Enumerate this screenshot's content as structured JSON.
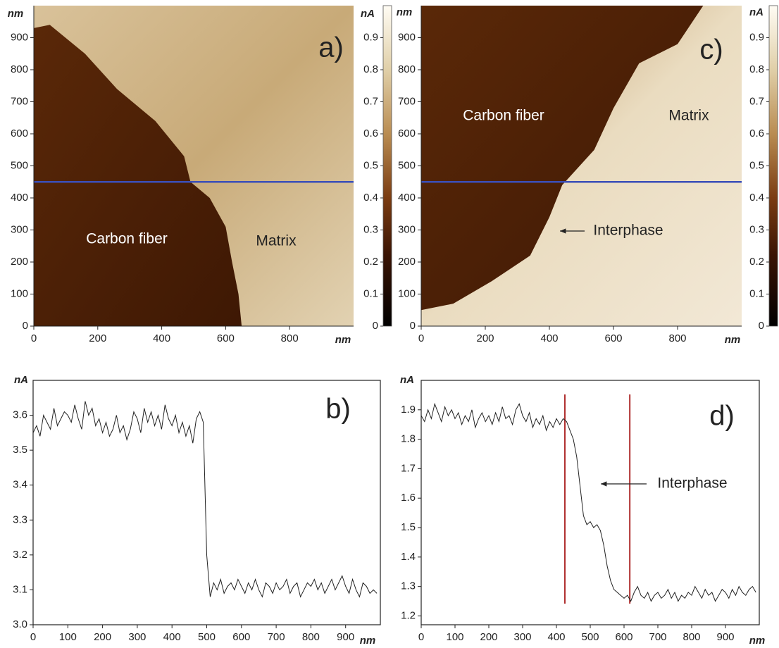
{
  "chart_data": [
    {
      "type": "image",
      "title": "a)",
      "x_label": "nm",
      "y_label": "nm",
      "xlim": [
        0,
        1000
      ],
      "ylim": [
        0,
        1000
      ],
      "xticks": [
        0,
        200,
        400,
        600,
        800
      ],
      "yticks": [
        0,
        100,
        200,
        300,
        400,
        500,
        600,
        700,
        800,
        900
      ],
      "colorbar": {
        "label": "nA",
        "lim": [
          0,
          1
        ],
        "ticks": [
          0,
          0.1,
          0.2,
          0.3,
          0.4,
          0.5,
          0.6,
          0.7,
          0.8,
          0.9
        ]
      },
      "profile_y": 450,
      "profile_color": "#3b4fb8",
      "annotations": [
        "Carbon fiber",
        "Matrix"
      ]
    },
    {
      "type": "line",
      "title": "b)",
      "x_label": "nm",
      "y_label": "nA",
      "xlim": [
        0,
        1000
      ],
      "ylim": [
        3.0,
        3.7
      ],
      "xticks": [
        0,
        100,
        200,
        300,
        400,
        500,
        600,
        700,
        800,
        900
      ],
      "yticks": [
        {
          "value": 3.0,
          "label": "3.0"
        },
        3.1,
        3.2,
        3.3,
        3.4,
        3.5,
        3.6
      ],
      "color": "#222222",
      "x": [
        0,
        10,
        20,
        30,
        40,
        50,
        60,
        70,
        80,
        90,
        100,
        110,
        120,
        130,
        140,
        150,
        160,
        170,
        180,
        190,
        200,
        210,
        220,
        230,
        240,
        250,
        260,
        270,
        280,
        290,
        300,
        310,
        320,
        330,
        340,
        350,
        360,
        370,
        380,
        390,
        400,
        410,
        420,
        430,
        440,
        450,
        460,
        470,
        480,
        490,
        500,
        510,
        520,
        530,
        540,
        550,
        560,
        570,
        580,
        590,
        600,
        610,
        620,
        630,
        640,
        650,
        660,
        670,
        680,
        690,
        700,
        710,
        720,
        730,
        740,
        750,
        760,
        770,
        780,
        790,
        800,
        810,
        820,
        830,
        840,
        850,
        860,
        870,
        880,
        890,
        900,
        910,
        920,
        930,
        940,
        950,
        960,
        970,
        980,
        990
      ],
      "values": [
        3.55,
        3.57,
        3.54,
        3.6,
        3.58,
        3.56,
        3.62,
        3.57,
        3.59,
        3.61,
        3.6,
        3.58,
        3.63,
        3.59,
        3.56,
        3.64,
        3.6,
        3.62,
        3.57,
        3.59,
        3.55,
        3.58,
        3.54,
        3.56,
        3.6,
        3.55,
        3.57,
        3.53,
        3.56,
        3.61,
        3.59,
        3.55,
        3.62,
        3.58,
        3.61,
        3.57,
        3.6,
        3.56,
        3.63,
        3.59,
        3.57,
        3.6,
        3.55,
        3.58,
        3.54,
        3.57,
        3.52,
        3.59,
        3.61,
        3.58,
        3.2,
        3.08,
        3.12,
        3.1,
        3.13,
        3.09,
        3.11,
        3.12,
        3.1,
        3.13,
        3.11,
        3.09,
        3.12,
        3.1,
        3.13,
        3.1,
        3.08,
        3.12,
        3.11,
        3.09,
        3.12,
        3.1,
        3.11,
        3.13,
        3.09,
        3.11,
        3.12,
        3.08,
        3.1,
        3.12,
        3.11,
        3.13,
        3.1,
        3.12,
        3.09,
        3.11,
        3.13,
        3.1,
        3.12,
        3.14,
        3.11,
        3.09,
        3.13,
        3.1,
        3.08,
        3.12,
        3.11,
        3.09,
        3.1,
        3.09
      ],
      "annotations": []
    },
    {
      "type": "image",
      "title": "c)",
      "x_label": "nm",
      "y_label": "nm",
      "xlim": [
        0,
        1000
      ],
      "ylim": [
        0,
        1000
      ],
      "xticks": [
        0,
        200,
        400,
        600,
        800
      ],
      "yticks": [
        0,
        100,
        200,
        300,
        400,
        500,
        600,
        700,
        800,
        900
      ],
      "colorbar": {
        "label": "nA",
        "lim": [
          0,
          1
        ],
        "ticks": [
          0,
          0.1,
          0.2,
          0.3,
          0.4,
          0.5,
          0.6,
          0.7,
          0.8,
          0.9
        ]
      },
      "profile_y": 450,
      "profile_color": "#3b4fb8",
      "annotations": [
        "Carbon fiber",
        "Matrix",
        "Interphase"
      ]
    },
    {
      "type": "line",
      "title": "d)",
      "x_label": "nm",
      "y_label": "nA",
      "xlim": [
        0,
        1000
      ],
      "ylim": [
        1.17,
        2.0
      ],
      "xticks": [
        0,
        100,
        200,
        300,
        400,
        500,
        600,
        700,
        800,
        900
      ],
      "yticks": [
        1.2,
        1.3,
        1.4,
        1.5,
        1.6,
        1.7,
        1.8,
        1.9
      ],
      "color": "#222222",
      "vlines": [
        425,
        617
      ],
      "vline_color": "#b03030",
      "x": [
        0,
        10,
        20,
        30,
        40,
        50,
        60,
        70,
        80,
        90,
        100,
        110,
        120,
        130,
        140,
        150,
        160,
        170,
        180,
        190,
        200,
        210,
        220,
        230,
        240,
        250,
        260,
        270,
        280,
        290,
        300,
        310,
        320,
        330,
        340,
        350,
        360,
        370,
        380,
        390,
        400,
        410,
        420,
        430,
        440,
        450,
        460,
        470,
        480,
        490,
        500,
        510,
        520,
        530,
        540,
        550,
        560,
        570,
        580,
        590,
        600,
        610,
        620,
        630,
        640,
        650,
        660,
        670,
        680,
        690,
        700,
        710,
        720,
        730,
        740,
        750,
        760,
        770,
        780,
        790,
        800,
        810,
        820,
        830,
        840,
        850,
        860,
        870,
        880,
        890,
        900,
        910,
        920,
        930,
        940,
        950,
        960,
        970,
        980,
        990
      ],
      "values": [
        1.88,
        1.86,
        1.9,
        1.87,
        1.92,
        1.89,
        1.86,
        1.91,
        1.88,
        1.9,
        1.87,
        1.89,
        1.85,
        1.88,
        1.86,
        1.9,
        1.84,
        1.87,
        1.89,
        1.86,
        1.88,
        1.85,
        1.89,
        1.86,
        1.91,
        1.87,
        1.88,
        1.85,
        1.9,
        1.92,
        1.88,
        1.86,
        1.89,
        1.84,
        1.87,
        1.85,
        1.88,
        1.83,
        1.86,
        1.84,
        1.87,
        1.85,
        1.87,
        1.86,
        1.83,
        1.8,
        1.74,
        1.64,
        1.54,
        1.51,
        1.52,
        1.5,
        1.51,
        1.49,
        1.44,
        1.37,
        1.32,
        1.29,
        1.28,
        1.27,
        1.26,
        1.27,
        1.25,
        1.28,
        1.3,
        1.27,
        1.26,
        1.28,
        1.25,
        1.27,
        1.28,
        1.26,
        1.27,
        1.29,
        1.26,
        1.28,
        1.25,
        1.27,
        1.26,
        1.28,
        1.27,
        1.3,
        1.28,
        1.26,
        1.29,
        1.27,
        1.28,
        1.25,
        1.27,
        1.29,
        1.28,
        1.26,
        1.29,
        1.27,
        1.3,
        1.28,
        1.27,
        1.29,
        1.3,
        1.28
      ],
      "annotations": [
        "Interphase"
      ]
    }
  ]
}
